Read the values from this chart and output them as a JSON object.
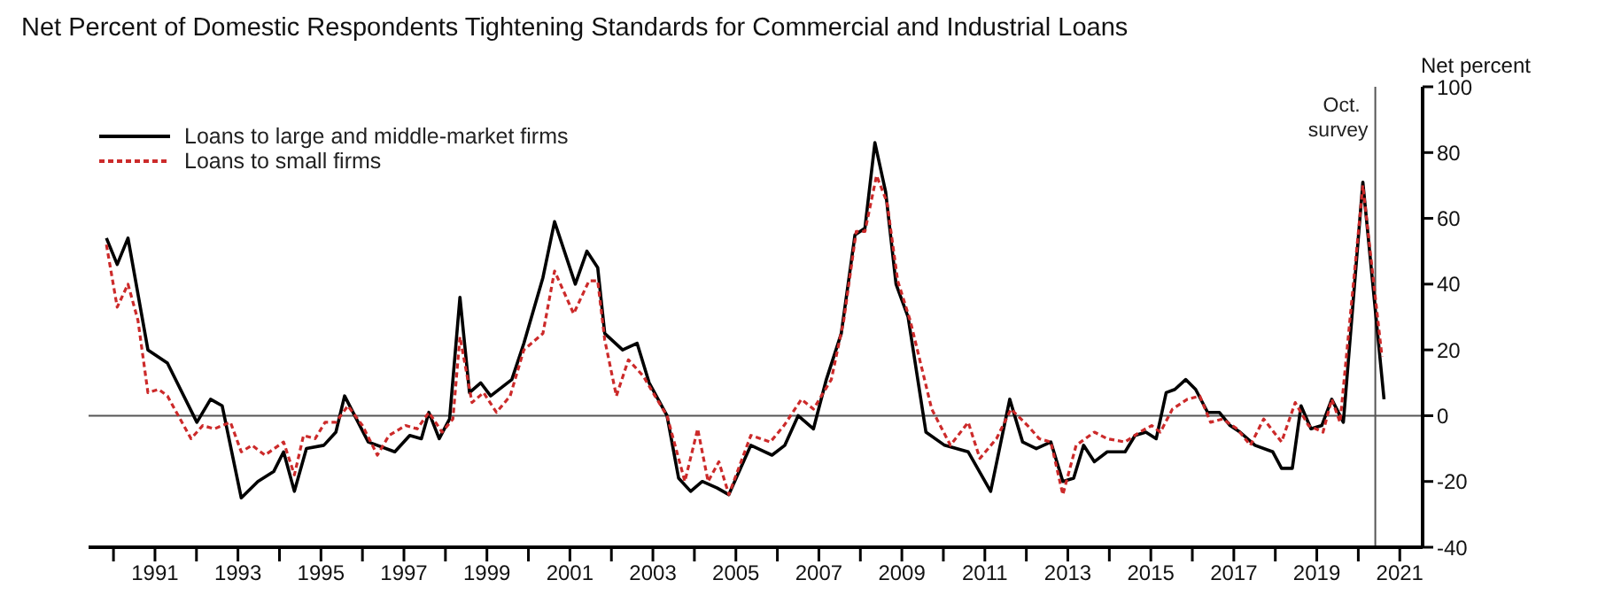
{
  "chart_data": {
    "type": "line",
    "title": "Net Percent of Domestic Respondents Tightening Standards for Commercial and Industrial Loans",
    "ylabel": "Net percent",
    "xlim": [
      1989.4,
      2021.55
    ],
    "xticks": [
      {
        "value": 1990,
        "label": null
      },
      {
        "value": 1991,
        "label": "1991"
      },
      {
        "value": 1992,
        "label": null
      },
      {
        "value": 1993,
        "label": "1993"
      },
      {
        "value": 1994,
        "label": null
      },
      {
        "value": 1995,
        "label": "1995"
      },
      {
        "value": 1996,
        "label": null
      },
      {
        "value": 1997,
        "label": "1997"
      },
      {
        "value": 1998,
        "label": null
      },
      {
        "value": 1999,
        "label": "1999"
      },
      {
        "value": 2000,
        "label": null
      },
      {
        "value": 2001,
        "label": "2001"
      },
      {
        "value": 2002,
        "label": null
      },
      {
        "value": 2003,
        "label": "2003"
      },
      {
        "value": 2004,
        "label": null
      },
      {
        "value": 2005,
        "label": "2005"
      },
      {
        "value": 2006,
        "label": null
      },
      {
        "value": 2007,
        "label": "2007"
      },
      {
        "value": 2008,
        "label": null
      },
      {
        "value": 2009,
        "label": "2009"
      },
      {
        "value": 2010,
        "label": null
      },
      {
        "value": 2011,
        "label": "2011"
      },
      {
        "value": 2012,
        "label": null
      },
      {
        "value": 2013,
        "label": "2013"
      },
      {
        "value": 2014,
        "label": null
      },
      {
        "value": 2015,
        "label": "2015"
      },
      {
        "value": 2016,
        "label": null
      },
      {
        "value": 2017,
        "label": "2017"
      },
      {
        "value": 2018,
        "label": null
      },
      {
        "value": 2019,
        "label": "2019"
      },
      {
        "value": 2020,
        "label": null
      },
      {
        "value": 2021,
        "label": "2021"
      }
    ],
    "ylim": [
      -40,
      100
    ],
    "yticks": [
      -40,
      -20,
      0,
      20,
      40,
      60,
      80,
      100
    ],
    "legend": "top left",
    "marker": "none",
    "ref_lines": [
      {
        "axis": "y",
        "value": 0,
        "label": null,
        "color": "#555555"
      },
      {
        "axis": "x",
        "value": 2020.41,
        "label": "Oct. survey",
        "color": "#555555"
      }
    ],
    "series": [
      {
        "name": "Loans to large and middle-market firms",
        "color": "#000000",
        "line_style": "solid",
        "x": [
          1989.83,
          1990.09,
          1990.35,
          1990.83,
          1991.3,
          1992.01,
          1992.34,
          1992.62,
          1993.08,
          1993.48,
          1993.86,
          1994.1,
          1994.36,
          1994.65,
          1995.07,
          1995.36,
          1995.57,
          1996.14,
          1996.78,
          1997.14,
          1997.42,
          1997.6,
          1997.85,
          1998.1,
          1998.35,
          1998.58,
          1998.85,
          1999.09,
          1999.6,
          1999.89,
          2000.35,
          2000.63,
          2001.13,
          2001.41,
          2001.67,
          2001.84,
          2002.27,
          2002.62,
          2002.91,
          2003.34,
          2003.62,
          2003.91,
          2004.19,
          2004.55,
          2004.83,
          2005.36,
          2005.87,
          2006.18,
          2006.5,
          2006.87,
          2007.18,
          2007.54,
          2007.87,
          2008.11,
          2008.35,
          2008.61,
          2008.86,
          2009.15,
          2009.58,
          2010.03,
          2010.6,
          2011.14,
          2011.6,
          2011.91,
          2012.24,
          2012.59,
          2012.88,
          2013.14,
          2013.38,
          2013.64,
          2013.95,
          2014.38,
          2014.62,
          2014.88,
          2015.13,
          2015.37,
          2015.58,
          2015.84,
          2016.08,
          2016.37,
          2016.65,
          2016.91,
          2017.15,
          2017.51,
          2017.94,
          2018.15,
          2018.41,
          2018.62,
          2018.86,
          2019.12,
          2019.36,
          2019.64,
          2020.11,
          2020.62
        ],
        "values": [
          54,
          46,
          54,
          20,
          16,
          -2,
          5,
          3,
          -25,
          -20,
          -17,
          -11,
          -23,
          -10,
          -9,
          -5,
          6,
          -8,
          -11,
          -6,
          -7,
          1,
          -7,
          -1,
          36,
          7,
          10,
          6,
          11,
          22,
          42,
          59,
          40,
          50,
          45,
          25,
          20,
          22,
          10,
          0,
          -19,
          -23,
          -20,
          -22,
          -24,
          -9,
          -12,
          -9,
          0,
          -4,
          11,
          25,
          55,
          57,
          83,
          68,
          40,
          30,
          -5,
          -9,
          -11,
          -23,
          5,
          -8,
          -10,
          -8,
          -20,
          -19,
          -9,
          -14,
          -11,
          -11,
          -6,
          -5,
          -7,
          7,
          8,
          11,
          8,
          1,
          1,
          -3,
          -5,
          -9,
          -11,
          -16,
          -16,
          3,
          -4,
          -3,
          5,
          -2,
          71,
          5
        ]
      },
      {
        "name": "Loans to small firms",
        "color": "#cc2a2a",
        "line_style": "dotted",
        "x": [
          1989.83,
          1990.09,
          1990.35,
          1990.59,
          1990.83,
          1991.09,
          1991.3,
          1991.87,
          1992.15,
          1992.43,
          1992.82,
          1993.08,
          1993.34,
          1993.65,
          1994.1,
          1994.36,
          1994.58,
          1994.86,
          1995.1,
          1995.36,
          1995.65,
          1996.0,
          1996.36,
          1996.64,
          1997.04,
          1997.32,
          1997.6,
          1997.92,
          1998.18,
          1998.35,
          1998.64,
          1998.92,
          1999.23,
          1999.56,
          1999.89,
          2000.35,
          2000.63,
          2001.09,
          2001.46,
          2001.67,
          2001.84,
          2002.12,
          2002.41,
          2002.77,
          2003.05,
          2003.34,
          2003.77,
          2004.08,
          2004.33,
          2004.59,
          2004.83,
          2005.36,
          2005.83,
          2006.16,
          2006.58,
          2006.87,
          2007.3,
          2007.6,
          2007.9,
          2008.11,
          2008.39,
          2008.64,
          2008.9,
          2009.2,
          2009.72,
          2010.17,
          2010.6,
          2010.88,
          2011.28,
          2011.63,
          2012.03,
          2012.31,
          2012.59,
          2012.88,
          2013.2,
          2013.64,
          2013.95,
          2014.38,
          2014.73,
          2015.02,
          2015.23,
          2015.52,
          2015.88,
          2016.18,
          2016.44,
          2016.73,
          2017.08,
          2017.4,
          2017.72,
          2018.15,
          2018.48,
          2018.8,
          2019.15,
          2019.36,
          2019.56,
          2020.11,
          2020.57
        ],
        "values": [
          52,
          33,
          40,
          29,
          7,
          8,
          6,
          -7,
          -3,
          -4,
          -2,
          -11,
          -9,
          -12,
          -8,
          -18,
          -6,
          -7,
          -2,
          -2,
          3,
          -3,
          -12,
          -6,
          -3,
          -4,
          1,
          -5,
          -1,
          24,
          4,
          7,
          1,
          6,
          20,
          25,
          44,
          31,
          41,
          41,
          23,
          6,
          17,
          12,
          6,
          0,
          -20,
          -4,
          -20,
          -14,
          -24,
          -6,
          -8,
          -3,
          5,
          2,
          11,
          29,
          56,
          56,
          73,
          65,
          41,
          29,
          2,
          -9,
          -2,
          -13,
          -7,
          2,
          -3,
          -7,
          -8,
          -24,
          -9,
          -5,
          -7,
          -8,
          -5,
          -3,
          -5,
          2,
          5,
          6,
          -2,
          -1,
          -4,
          -9,
          -1,
          -8,
          4,
          -3,
          -5,
          5,
          -2,
          70,
          18
        ]
      }
    ]
  }
}
